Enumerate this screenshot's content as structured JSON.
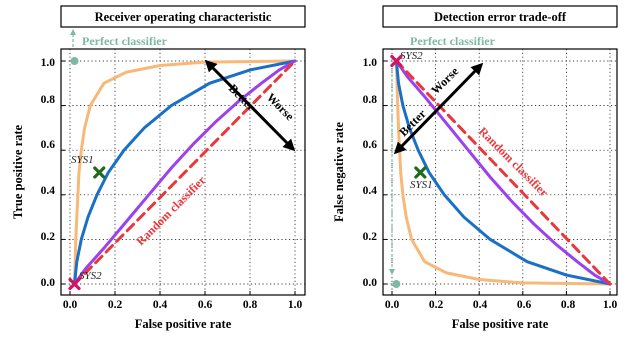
{
  "colors": {
    "orange": "#f8b878",
    "blue": "#1a70c6",
    "purple": "#9b41ee",
    "red": "#e8383c",
    "green": "#7fb8a4",
    "sys1": "#1e6b1e",
    "sys2": "#d21466"
  },
  "chart_data": [
    {
      "type": "line",
      "title": "Receiver operating characteristic",
      "xlabel": "False positive rate",
      "ylabel": "True positive rate",
      "xlim": [
        -0.02,
        1.02
      ],
      "ylim": [
        -0.04,
        1.04
      ],
      "xticks": [
        "0.0",
        "0.2",
        "0.4",
        "0.6",
        "0.8",
        "1.0"
      ],
      "yticks": [
        "0.0",
        "0.2",
        "0.4",
        "0.6",
        "0.8",
        "1.0"
      ],
      "grid": true,
      "series": [
        {
          "color_key": "orange",
          "style": "solid",
          "points": [
            [
              0.02,
              0
            ],
            [
              0.023,
              0.1
            ],
            [
              0.026,
              0.2
            ],
            [
              0.03,
              0.3
            ],
            [
              0.035,
              0.4
            ],
            [
              0.04,
              0.5
            ],
            [
              0.05,
              0.6
            ],
            [
              0.065,
              0.7
            ],
            [
              0.09,
              0.8
            ],
            [
              0.15,
              0.9
            ],
            [
              0.25,
              0.95
            ],
            [
              0.4,
              0.98
            ],
            [
              0.6,
              0.995
            ],
            [
              1,
              1
            ]
          ]
        },
        {
          "color_key": "blue",
          "style": "solid",
          "points": [
            [
              0.02,
              0
            ],
            [
              0.03,
              0.1
            ],
            [
              0.05,
              0.2
            ],
            [
              0.08,
              0.3
            ],
            [
              0.12,
              0.4
            ],
            [
              0.17,
              0.5
            ],
            [
              0.24,
              0.6
            ],
            [
              0.33,
              0.7
            ],
            [
              0.45,
              0.8
            ],
            [
              0.62,
              0.9
            ],
            [
              0.8,
              0.96
            ],
            [
              1,
              1
            ]
          ]
        },
        {
          "color_key": "purple",
          "style": "solid",
          "points": [
            [
              0.02,
              0
            ],
            [
              0.07,
              0.07
            ],
            [
              0.15,
              0.16
            ],
            [
              0.25,
              0.28
            ],
            [
              0.35,
              0.4
            ],
            [
              0.45,
              0.52
            ],
            [
              0.55,
              0.63
            ],
            [
              0.65,
              0.73
            ],
            [
              0.75,
              0.82
            ],
            [
              0.85,
              0.9
            ],
            [
              0.93,
              0.96
            ],
            [
              1,
              1
            ]
          ]
        },
        {
          "color_key": "red",
          "style": "dashed",
          "points": [
            [
              0.02,
              0
            ],
            [
              1,
              1
            ]
          ]
        }
      ],
      "points": [
        {
          "label": "Perfect classifier",
          "x": 0.02,
          "y": 1.0,
          "color_key": "green"
        },
        {
          "label": "SYS1",
          "x": 0.13,
          "y": 0.5,
          "color_key": "sys1"
        },
        {
          "label": "SYS2",
          "x": 0.02,
          "y": 0.0,
          "color_key": "sys2"
        }
      ],
      "annotations": {
        "perfect": "Perfect classifier",
        "random": "Random classifier",
        "better": "Better",
        "worse": "Worse",
        "sys1": "SYS1",
        "sys2": "SYS2"
      }
    },
    {
      "type": "line",
      "title": "Detection error trade-off",
      "xlabel": "False positive rate",
      "ylabel": "False negative rate",
      "xlim": [
        -0.02,
        1.02
      ],
      "ylim": [
        -0.04,
        1.04
      ],
      "xticks": [
        "0.0",
        "0.2",
        "0.4",
        "0.6",
        "0.8",
        "1.0"
      ],
      "yticks": [
        "0.0",
        "0.2",
        "0.4",
        "0.6",
        "0.8",
        "1.0"
      ],
      "grid": true,
      "series": [
        {
          "color_key": "orange",
          "style": "solid",
          "points": [
            [
              0.02,
              1
            ],
            [
              0.023,
              0.9
            ],
            [
              0.026,
              0.8
            ],
            [
              0.03,
              0.7
            ],
            [
              0.035,
              0.6
            ],
            [
              0.04,
              0.5
            ],
            [
              0.05,
              0.4
            ],
            [
              0.065,
              0.3
            ],
            [
              0.09,
              0.2
            ],
            [
              0.15,
              0.1
            ],
            [
              0.25,
              0.05
            ],
            [
              0.4,
              0.02
            ],
            [
              0.6,
              0.005
            ],
            [
              1,
              0
            ]
          ]
        },
        {
          "color_key": "blue",
          "style": "solid",
          "points": [
            [
              0.02,
              1
            ],
            [
              0.03,
              0.9
            ],
            [
              0.05,
              0.8
            ],
            [
              0.08,
              0.7
            ],
            [
              0.12,
              0.6
            ],
            [
              0.17,
              0.5
            ],
            [
              0.24,
              0.4
            ],
            [
              0.33,
              0.3
            ],
            [
              0.45,
              0.2
            ],
            [
              0.62,
              0.1
            ],
            [
              0.8,
              0.04
            ],
            [
              1,
              0
            ]
          ]
        },
        {
          "color_key": "purple",
          "style": "solid",
          "points": [
            [
              0.02,
              1
            ],
            [
              0.07,
              0.93
            ],
            [
              0.15,
              0.84
            ],
            [
              0.25,
              0.72
            ],
            [
              0.35,
              0.6
            ],
            [
              0.45,
              0.48
            ],
            [
              0.55,
              0.37
            ],
            [
              0.65,
              0.27
            ],
            [
              0.75,
              0.18
            ],
            [
              0.85,
              0.1
            ],
            [
              0.93,
              0.04
            ],
            [
              1,
              0
            ]
          ]
        },
        {
          "color_key": "red",
          "style": "dashed",
          "points": [
            [
              0.02,
              1
            ],
            [
              1,
              0
            ]
          ]
        }
      ],
      "points": [
        {
          "label": "Perfect classifier",
          "x": 0.02,
          "y": 0.0,
          "color_key": "green"
        },
        {
          "label": "SYS1",
          "x": 0.13,
          "y": 0.5,
          "color_key": "sys1"
        },
        {
          "label": "SYS2",
          "x": 0.02,
          "y": 1.0,
          "color_key": "sys2"
        }
      ],
      "annotations": {
        "perfect": "Perfect classifier",
        "random": "Random classifier",
        "better": "Better",
        "worse": "Worse",
        "sys1": "SYS1",
        "sys2": "SYS2"
      }
    }
  ]
}
